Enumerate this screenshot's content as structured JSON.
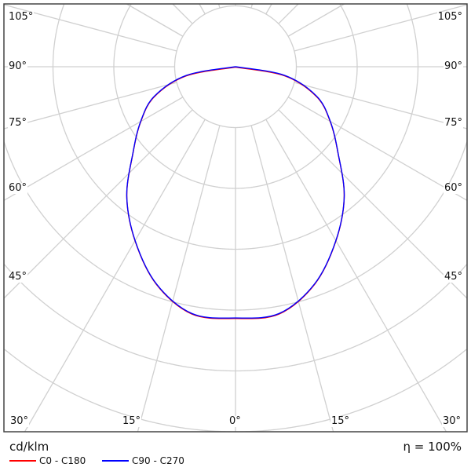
{
  "chart_data": {
    "type": "polar",
    "unit_label": "cd/klm",
    "efficiency_label": "η = 100%",
    "angle_labels_left": [
      "105°",
      "90°",
      "75°",
      "60°",
      "45°",
      "30°"
    ],
    "angle_labels_right": [
      "105°",
      "90°",
      "75°",
      "60°",
      "45°",
      "30°"
    ],
    "angle_labels_bottom": [
      "30°",
      "15°",
      "0°",
      "15°",
      "30°"
    ],
    "spoke_step_deg": 15,
    "ring_count": 6,
    "grid": true,
    "angles_deg": [
      0,
      10,
      20,
      30,
      40,
      50,
      60,
      70,
      80,
      90
    ],
    "series": [
      {
        "name": "C0 - C180",
        "color": "#ff0000",
        "values": [
          4.13,
          4.12,
          3.8,
          3.3,
          2.78,
          2.2,
          1.8,
          1.42,
          0.82,
          0
        ]
      },
      {
        "name": "C90 - C270",
        "color": "#0000ff",
        "values": [
          4.13,
          4.12,
          3.8,
          3.3,
          2.78,
          2.2,
          1.8,
          1.42,
          0.82,
          0
        ]
      }
    ]
  }
}
